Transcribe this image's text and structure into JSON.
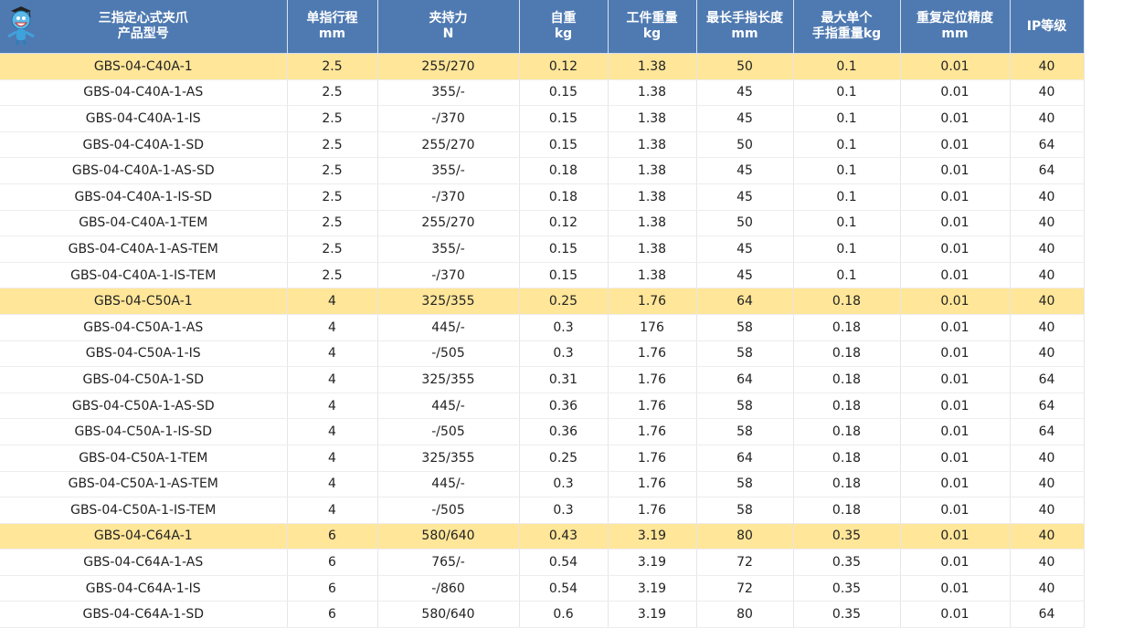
{
  "colors": {
    "header_bg": "#4f7ab1",
    "highlight_row": "#ffe699"
  },
  "header": {
    "mascot_icon": "cartoon-mascot-logo",
    "columns": [
      {
        "line1": "三指定心式夹爪",
        "line2": "产品型号"
      },
      {
        "line1": "单指行程",
        "line2": "mm"
      },
      {
        "line1": "夹持力",
        "line2": "N"
      },
      {
        "line1": "自重",
        "line2": "kg"
      },
      {
        "line1": "工件重量",
        "line2": "kg"
      },
      {
        "line1": "最长手指长度",
        "line2": "mm"
      },
      {
        "line1": "最大单个",
        "line2": "手指重量kg"
      },
      {
        "line1": "重复定位精度",
        "line2": "mm"
      },
      {
        "line1": "IP等级",
        "line2": ""
      }
    ]
  },
  "rows": [
    {
      "highlight": true,
      "cells": [
        "GBS-04-C40A-1",
        "2.5",
        "255/270",
        "0.12",
        "1.38",
        "50",
        "0.1",
        "0.01",
        "40"
      ]
    },
    {
      "highlight": false,
      "cells": [
        "GBS-04-C40A-1-AS",
        "2.5",
        "355/-",
        "0.15",
        "1.38",
        "45",
        "0.1",
        "0.01",
        "40"
      ]
    },
    {
      "highlight": false,
      "cells": [
        "GBS-04-C40A-1-IS",
        "2.5",
        "-/370",
        "0.15",
        "1.38",
        "45",
        "0.1",
        "0.01",
        "40"
      ]
    },
    {
      "highlight": false,
      "cells": [
        "GBS-04-C40A-1-SD",
        "2.5",
        "255/270",
        "0.15",
        "1.38",
        "50",
        "0.1",
        "0.01",
        "64"
      ]
    },
    {
      "highlight": false,
      "cells": [
        "GBS-04-C40A-1-AS-SD",
        "2.5",
        "355/-",
        "0.18",
        "1.38",
        "45",
        "0.1",
        "0.01",
        "64"
      ]
    },
    {
      "highlight": false,
      "cells": [
        "GBS-04-C40A-1-IS-SD",
        "2.5",
        "-/370",
        "0.18",
        "1.38",
        "45",
        "0.1",
        "0.01",
        "40"
      ]
    },
    {
      "highlight": false,
      "cells": [
        "GBS-04-C40A-1-TEM",
        "2.5",
        "255/270",
        "0.12",
        "1.38",
        "50",
        "0.1",
        "0.01",
        "40"
      ]
    },
    {
      "highlight": false,
      "cells": [
        "GBS-04-C40A-1-AS-TEM",
        "2.5",
        "355/-",
        "0.15",
        "1.38",
        "45",
        "0.1",
        "0.01",
        "40"
      ]
    },
    {
      "highlight": false,
      "cells": [
        "GBS-04-C40A-1-IS-TEM",
        "2.5",
        "-/370",
        "0.15",
        "1.38",
        "45",
        "0.1",
        "0.01",
        "40"
      ]
    },
    {
      "highlight": true,
      "cells": [
        "GBS-04-C50A-1",
        "4",
        "325/355",
        "0.25",
        "1.76",
        "64",
        "0.18",
        "0.01",
        "40"
      ]
    },
    {
      "highlight": false,
      "cells": [
        "GBS-04-C50A-1-AS",
        "4",
        "445/-",
        "0.3",
        "176",
        "58",
        "0.18",
        "0.01",
        "40"
      ]
    },
    {
      "highlight": false,
      "cells": [
        "GBS-04-C50A-1-IS",
        "4",
        "-/505",
        "0.3",
        "1.76",
        "58",
        "0.18",
        "0.01",
        "40"
      ]
    },
    {
      "highlight": false,
      "cells": [
        "GBS-04-C50A-1-SD",
        "4",
        "325/355",
        "0.31",
        "1.76",
        "64",
        "0.18",
        "0.01",
        "64"
      ]
    },
    {
      "highlight": false,
      "cells": [
        "GBS-04-C50A-1-AS-SD",
        "4",
        "445/-",
        "0.36",
        "1.76",
        "58",
        "0.18",
        "0.01",
        "64"
      ]
    },
    {
      "highlight": false,
      "cells": [
        "GBS-04-C50A-1-IS-SD",
        "4",
        "-/505",
        "0.36",
        "1.76",
        "58",
        "0.18",
        "0.01",
        "64"
      ]
    },
    {
      "highlight": false,
      "cells": [
        "GBS-04-C50A-1-TEM",
        "4",
        "325/355",
        "0.25",
        "1.76",
        "64",
        "0.18",
        "0.01",
        "40"
      ]
    },
    {
      "highlight": false,
      "cells": [
        "GBS-04-C50A-1-AS-TEM",
        "4",
        "445/-",
        "0.3",
        "1.76",
        "58",
        "0.18",
        "0.01",
        "40"
      ]
    },
    {
      "highlight": false,
      "cells": [
        "GBS-04-C50A-1-IS-TEM",
        "4",
        "-/505",
        "0.3",
        "1.76",
        "58",
        "0.18",
        "0.01",
        "40"
      ]
    },
    {
      "highlight": true,
      "cells": [
        "GBS-04-C64A-1",
        "6",
        "580/640",
        "0.43",
        "3.19",
        "80",
        "0.35",
        "0.01",
        "40"
      ]
    },
    {
      "highlight": false,
      "cells": [
        "GBS-04-C64A-1-AS",
        "6",
        "765/-",
        "0.54",
        "3.19",
        "72",
        "0.35",
        "0.01",
        "40"
      ]
    },
    {
      "highlight": false,
      "cells": [
        "GBS-04-C64A-1-IS",
        "6",
        "-/860",
        "0.54",
        "3.19",
        "72",
        "0.35",
        "0.01",
        "40"
      ]
    },
    {
      "highlight": false,
      "cells": [
        "GBS-04-C64A-1-SD",
        "6",
        "580/640",
        "0.6",
        "3.19",
        "80",
        "0.35",
        "0.01",
        "64"
      ]
    }
  ]
}
